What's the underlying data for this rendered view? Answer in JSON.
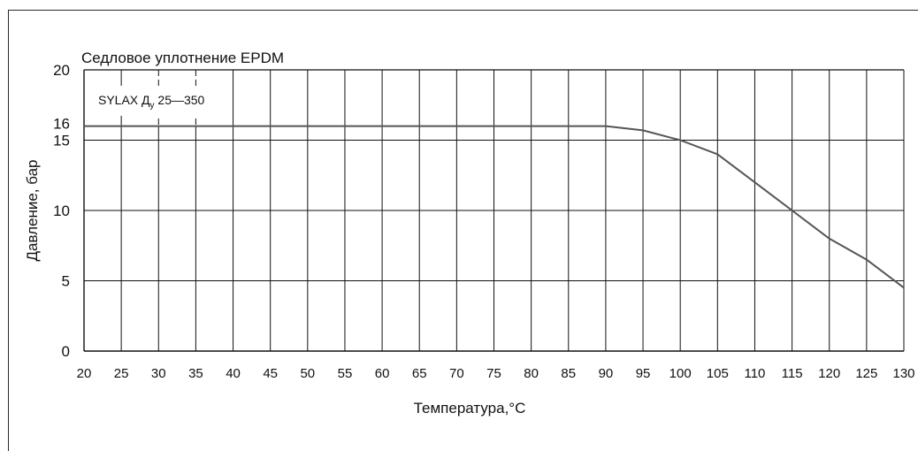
{
  "chart_data": {
    "type": "line",
    "title": "Седловое уплотнение EPDM",
    "series_label_main": "SYLAX Д",
    "series_label_sub": "у",
    "series_label_range": "25—350",
    "xlabel": "Температура,°С",
    "ylabel": "Давление, бар",
    "xlim": [
      20,
      130
    ],
    "ylim": [
      0,
      20
    ],
    "x_ticks": [
      20,
      25,
      30,
      35,
      40,
      45,
      50,
      55,
      60,
      65,
      70,
      75,
      80,
      85,
      90,
      95,
      100,
      105,
      110,
      115,
      120,
      125,
      130
    ],
    "y_ticks": [
      0,
      5,
      10,
      15,
      20
    ],
    "extra_y_tick": 16,
    "grid": true,
    "series": [
      {
        "x": [
          20,
          90,
          95,
          100,
          105,
          110,
          115,
          120,
          125,
          130
        ],
        "y": [
          16,
          16,
          15.7,
          15,
          14,
          12,
          10,
          8,
          6.5,
          4.5
        ]
      }
    ],
    "colors": {
      "line": "#555555",
      "grid": "#111111"
    }
  }
}
